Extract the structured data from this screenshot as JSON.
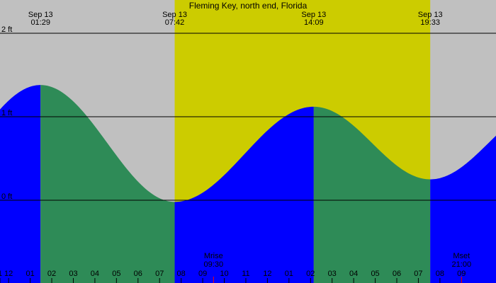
{
  "chart_data": {
    "type": "area",
    "title": "Fleming Key, north end, Florida",
    "xlim": [
      -0.4,
      22.6
    ],
    "ylim": [
      -0.85,
      2.0
    ],
    "y_gridlines": [
      2,
      1,
      0
    ],
    "y_tick_labels": [
      {
        "value": 2,
        "label": "2 ft"
      },
      {
        "value": 1,
        "label": "1 ft"
      },
      {
        "value": 0,
        "label": "0 ft"
      }
    ],
    "daylight": {
      "start": 7.7,
      "end": 19.55
    },
    "events": [
      {
        "date": "Sep 13",
        "time": "01:29",
        "hour": 1.48,
        "height": 1.38,
        "type": "high"
      },
      {
        "date": "Sep 13",
        "time": "07:42",
        "hour": 7.7,
        "height": -0.02,
        "type": "low"
      },
      {
        "date": "Sep 13",
        "time": "14:09",
        "hour": 14.15,
        "height": 1.12,
        "type": "high"
      },
      {
        "date": "Sep 13",
        "time": "19:33",
        "hour": 19.55,
        "height": 0.25,
        "type": "low"
      }
    ],
    "end_height": 0.62,
    "hour_ticks": [
      {
        "hour": -0.4,
        "label": "1"
      },
      {
        "hour": 0,
        "label": "12"
      },
      {
        "hour": 1,
        "label": "01"
      },
      {
        "hour": 2,
        "label": "02"
      },
      {
        "hour": 3,
        "label": "03"
      },
      {
        "hour": 4,
        "label": "04"
      },
      {
        "hour": 5,
        "label": "05"
      },
      {
        "hour": 6,
        "label": "06"
      },
      {
        "hour": 7,
        "label": "07"
      },
      {
        "hour": 8,
        "label": "08"
      },
      {
        "hour": 9,
        "label": "09"
      },
      {
        "hour": 10,
        "label": "10"
      },
      {
        "hour": 11,
        "label": "11"
      },
      {
        "hour": 12,
        "label": "12"
      },
      {
        "hour": 13,
        "label": "01"
      },
      {
        "hour": 14,
        "label": "02"
      },
      {
        "hour": 15,
        "label": "03"
      },
      {
        "hour": 16,
        "label": "04"
      },
      {
        "hour": 17,
        "label": "05"
      },
      {
        "hour": 18,
        "label": "06"
      },
      {
        "hour": 19,
        "label": "07"
      },
      {
        "hour": 20,
        "label": "08"
      },
      {
        "hour": 21,
        "label": "09"
      }
    ],
    "moon": [
      {
        "label": "Mrise",
        "time": "09:30",
        "hour": 9.5
      },
      {
        "label": "Mset",
        "time": "21:00",
        "hour": 21.0
      }
    ],
    "colors": {
      "night": "#c0c0c0",
      "day": "#cccc00",
      "rising": "#0000ff",
      "falling": "#2e8b57",
      "moon_tick": "#ff0000"
    }
  }
}
